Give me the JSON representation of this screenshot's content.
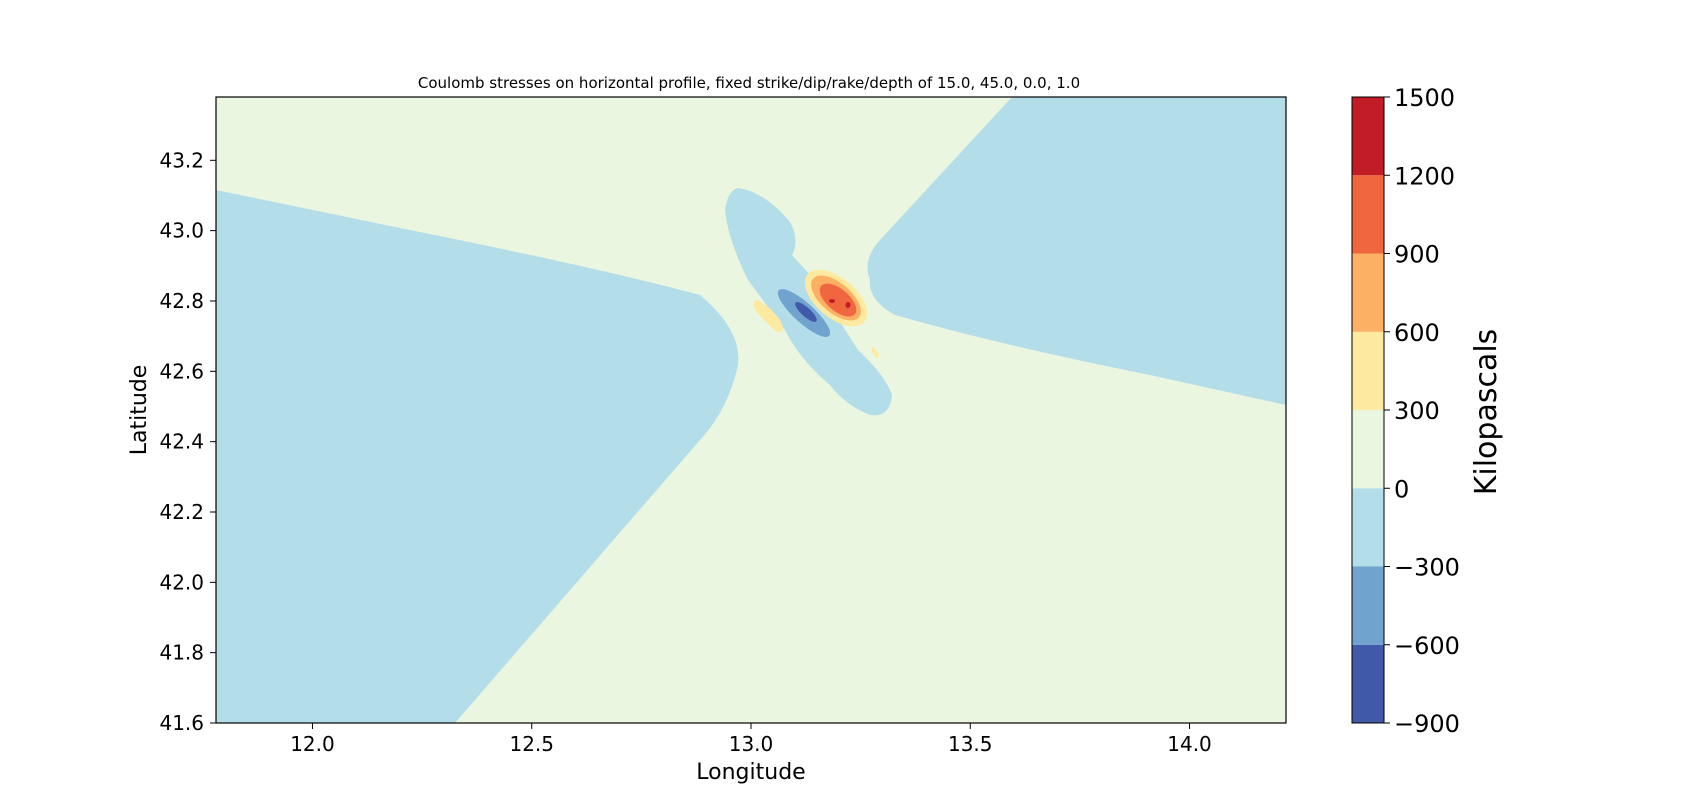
{
  "chart_data": {
    "type": "contour",
    "title": "Coulomb stresses on horizontal profile, fixed strike/dip/rake/depth of 15.0, 45.0, 0.0, 1.0",
    "xlabel": "Longitude",
    "ylabel": "Latitude",
    "xlim": [
      11.78,
      14.22
    ],
    "ylim": [
      41.6,
      43.38
    ],
    "x_ticks": [
      12.0,
      12.5,
      13.0,
      13.5,
      14.0
    ],
    "x_tick_labels": [
      "12.0",
      "12.5",
      "13.0",
      "13.5",
      "14.0"
    ],
    "y_ticks": [
      41.6,
      41.8,
      42.0,
      42.2,
      42.4,
      42.6,
      42.8,
      43.0,
      43.2
    ],
    "y_tick_labels": [
      "41.6",
      "41.8",
      "42.0",
      "42.2",
      "42.4",
      "42.6",
      "42.8",
      "43.0",
      "43.2"
    ],
    "colorbar": {
      "label": "Kilopascals",
      "levels": [
        -900,
        -600,
        -300,
        0,
        300,
        600,
        900,
        1200,
        1500
      ],
      "level_labels": [
        "−900",
        "−600",
        "−300",
        "0",
        "300",
        "600",
        "900",
        "1200",
        "1500"
      ],
      "colors": [
        "#4059a8",
        "#70a4cf",
        "#b3dde9",
        "#ebf6e0",
        "#fde9a0",
        "#fcb064",
        "#f0663f",
        "#c21c27"
      ]
    },
    "grid": false,
    "fault_center": {
      "lon": 13.18,
      "lat": 42.79
    }
  }
}
